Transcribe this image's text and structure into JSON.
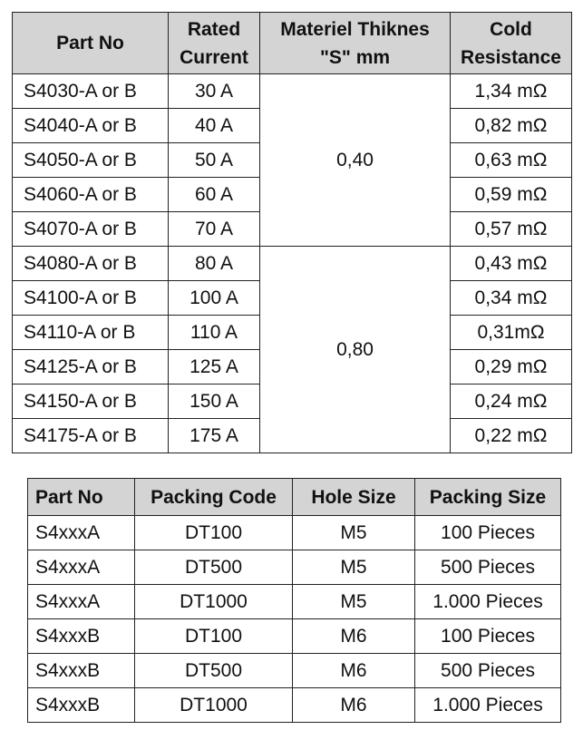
{
  "table1": {
    "header": [
      [
        "Part No"
      ],
      [
        "Rated",
        "Current"
      ],
      [
        "Materiel Thiknes",
        "\"S\" mm"
      ],
      [
        "Cold",
        "Resistance"
      ]
    ],
    "groups": [
      {
        "thickness": "0,40",
        "rows": [
          {
            "part": "S4030-A or B",
            "current": "30 A",
            "resistance": "1,34 mΩ"
          },
          {
            "part": "S4040-A or B",
            "current": "40 A",
            "resistance": "0,82 mΩ"
          },
          {
            "part": "S4050-A or B",
            "current": "50 A",
            "resistance": "0,63 mΩ"
          },
          {
            "part": "S4060-A or B",
            "current": "60 A",
            "resistance": "0,59 mΩ"
          },
          {
            "part": "S4070-A or B",
            "current": "70 A",
            "resistance": "0,57 mΩ"
          }
        ]
      },
      {
        "thickness": "0,80",
        "rows": [
          {
            "part": "S4080-A or B",
            "current": "80 A",
            "resistance": "0,43 mΩ"
          },
          {
            "part": "S4100-A or B",
            "current": "100 A",
            "resistance": "0,34 mΩ"
          },
          {
            "part": "S4110-A or B",
            "current": "110 A",
            "resistance": "0,31mΩ"
          },
          {
            "part": "S4125-A or B",
            "current": "125 A",
            "resistance": "0,29 mΩ"
          },
          {
            "part": "S4150-A or B",
            "current": "150 A",
            "resistance": "0,24 mΩ"
          },
          {
            "part": "S4175-A or B",
            "current": "175 A",
            "resistance": "0,22 mΩ"
          }
        ]
      }
    ]
  },
  "table2": {
    "header": [
      "Part No",
      "Packing Code",
      "Hole Size",
      "Packing Size"
    ],
    "rows": [
      [
        "S4xxxA",
        "DT100",
        "M5",
        "100 Pieces"
      ],
      [
        "S4xxxA",
        "DT500",
        "M5",
        "500 Pieces"
      ],
      [
        "S4xxxA",
        "DT1000",
        "M5",
        "1.000 Pieces"
      ],
      [
        "S4xxxB",
        "DT100",
        "M6",
        "100 Pieces"
      ],
      [
        "S4xxxB",
        "DT500",
        "M6",
        "500 Pieces"
      ],
      [
        "S4xxxB",
        "DT1000",
        "M6",
        "1.000 Pieces"
      ]
    ]
  }
}
